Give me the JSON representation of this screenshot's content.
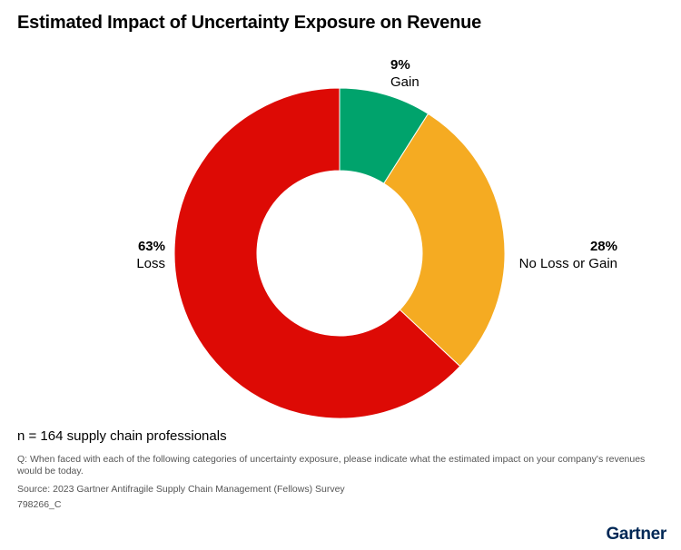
{
  "header": {
    "title": "Estimated Impact of Uncertainty Exposure on Revenue"
  },
  "chart_data": {
    "type": "pie",
    "title": "Estimated Impact of Uncertainty Exposure on Revenue",
    "slices": [
      {
        "label": "Gain",
        "value": 9,
        "value_label": "9%",
        "color": "#00a36c"
      },
      {
        "label": "No Loss or Gain",
        "value": 28,
        "value_label": "28%",
        "color": "#f5ab22"
      },
      {
        "label": "Loss",
        "value": 63,
        "value_label": "63%",
        "color": "#dd0a05"
      }
    ]
  },
  "footer": {
    "sample": "n = 164 supply chain professionals",
    "question": "Q: When faced with each of the following categories of uncertainty exposure, please indicate what the estimated impact on your company's revenues would be today.",
    "source": "Source: 2023 Gartner Antifragile Supply Chain Management (Fellows) Survey",
    "code": "798266_C",
    "logo": "Gartner"
  }
}
